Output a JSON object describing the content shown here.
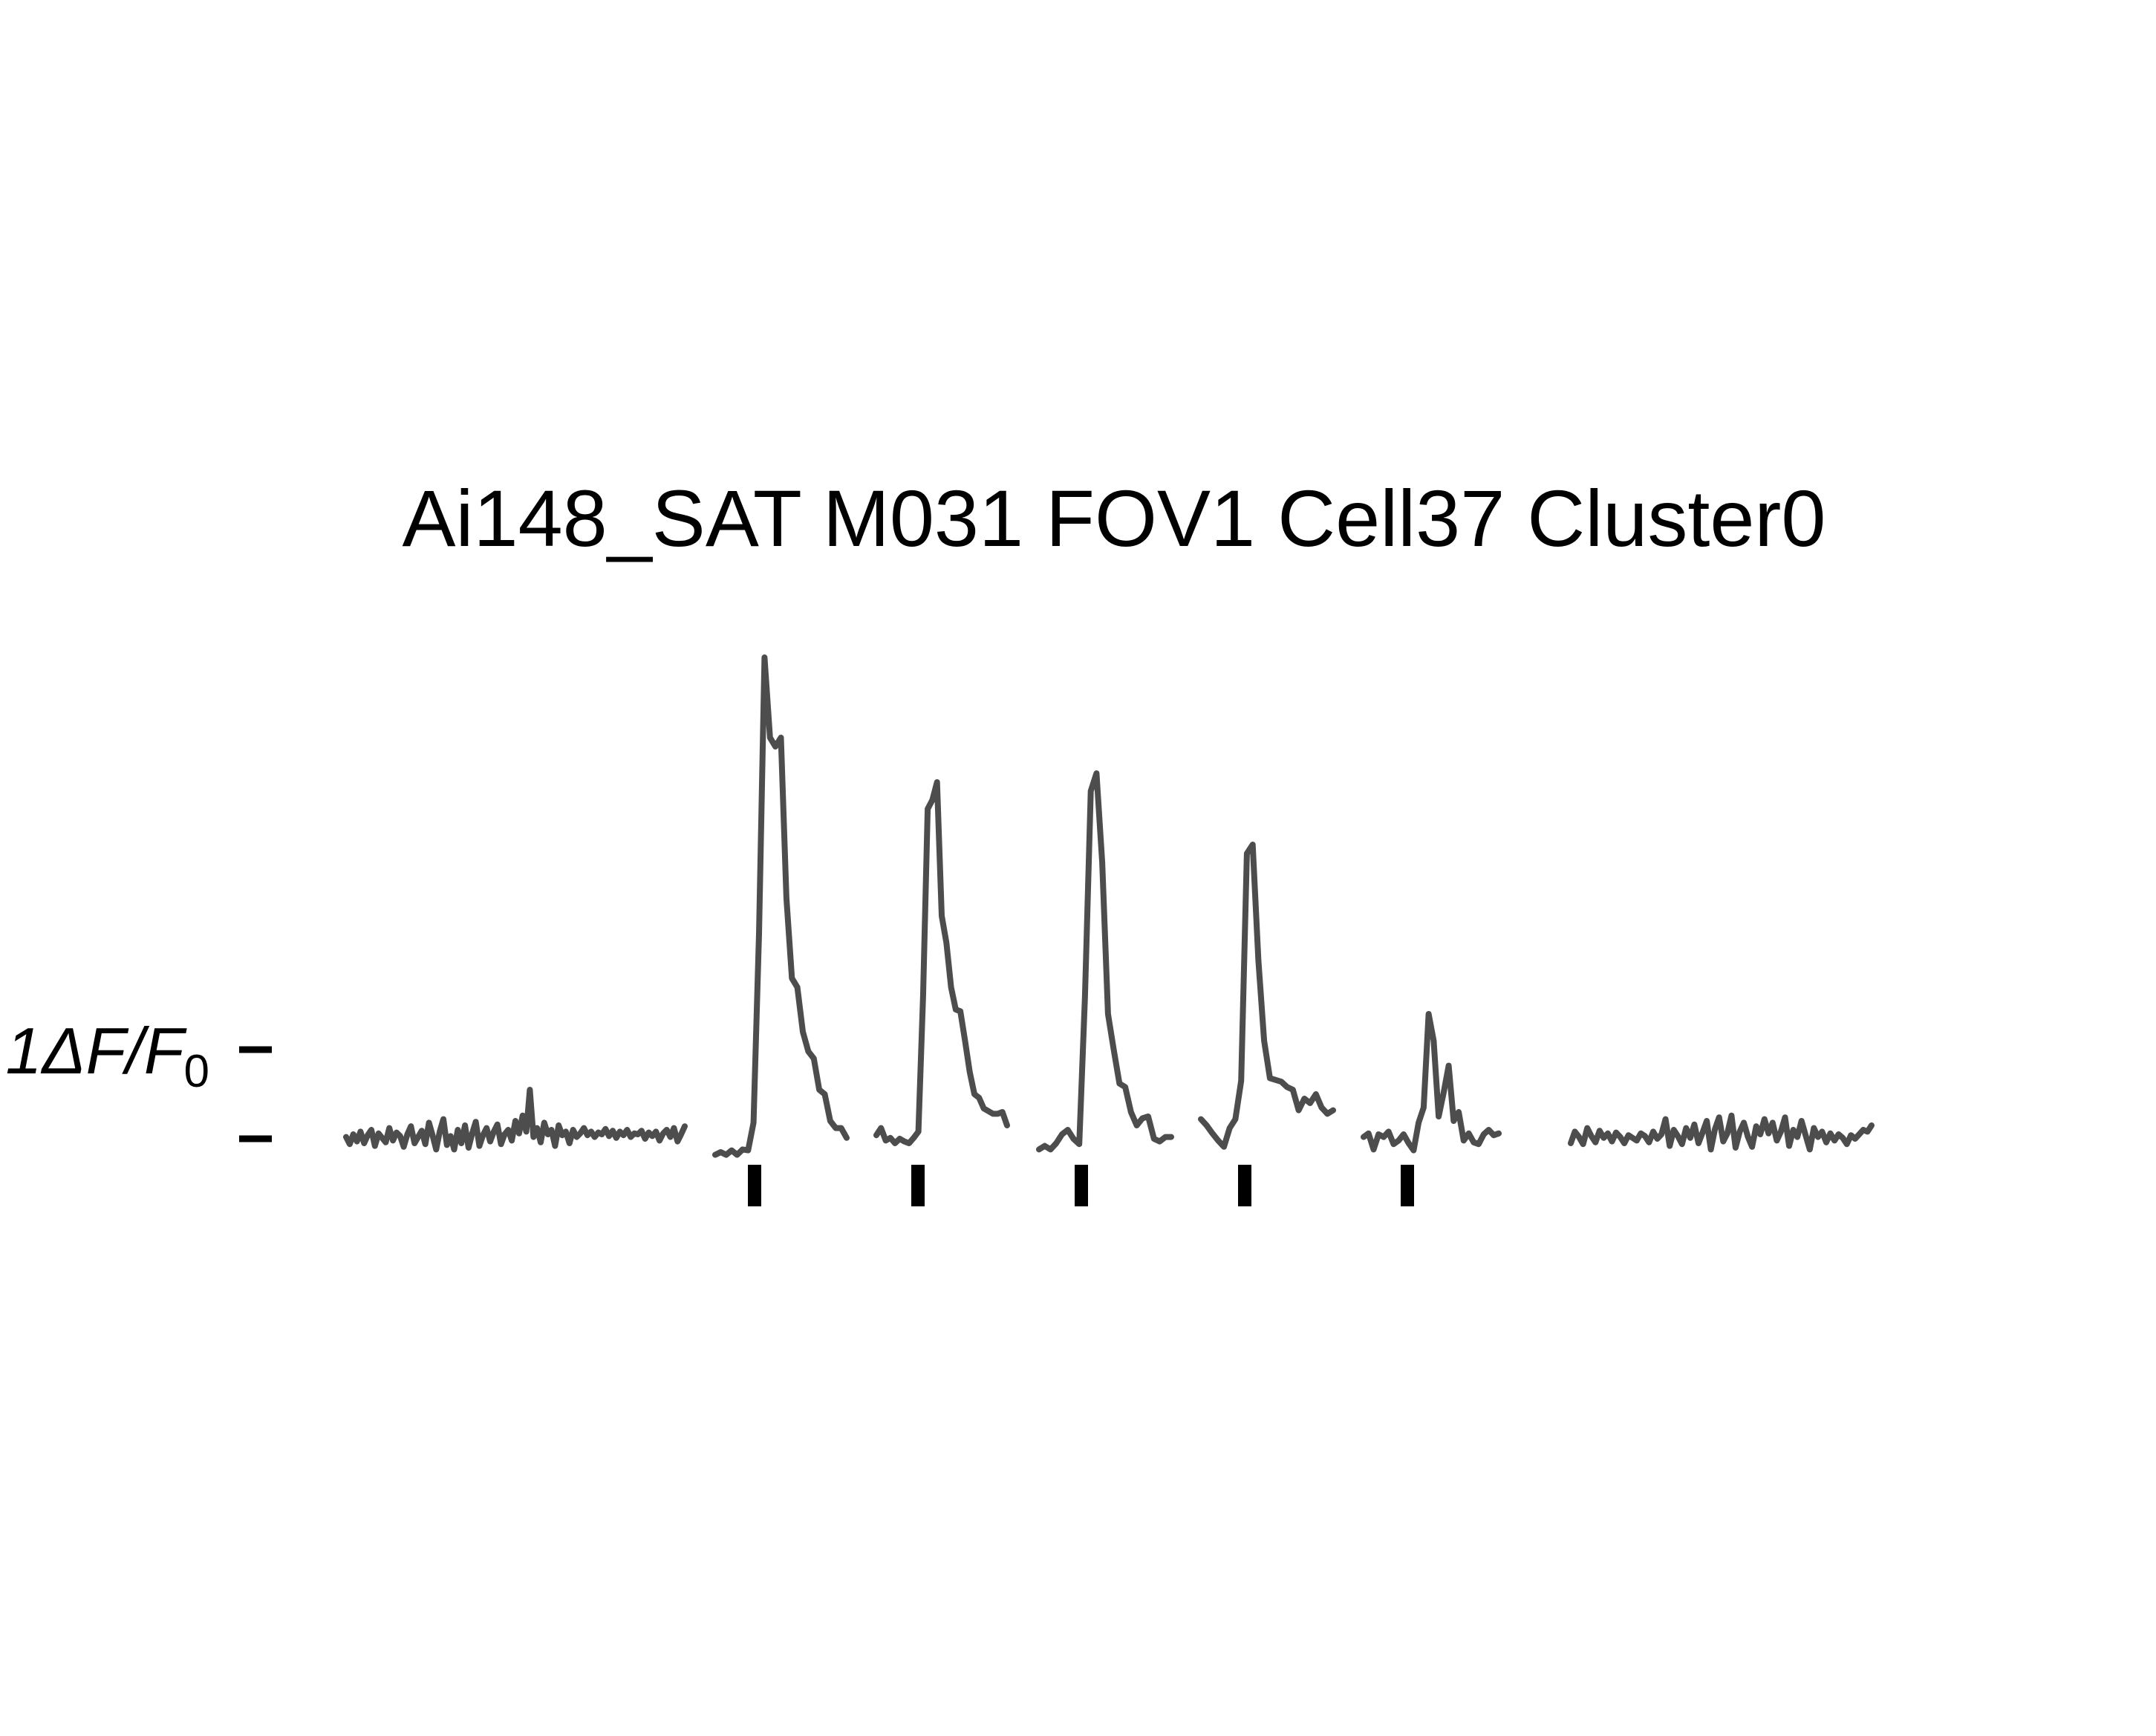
{
  "chart_data": {
    "type": "line",
    "title": "Ai148_SAT M031 FOV1 Cell37 Cluster0",
    "ylabel_prefix": "1",
    "ylabel_delta": "Δ",
    "ylabel_F": "F",
    "ylabel_slash": "/",
    "ylabel_F0": "F",
    "ylabel_F0_sub": "0",
    "scale_bar": {
      "from": 0,
      "to": 1
    },
    "line_color": "#4d4d4d",
    "stim_marker_color": "#000000",
    "segments": [
      {
        "name": "baseline-pre",
        "values": [
          0.02,
          -0.06,
          0.05,
          -0.03,
          0.08,
          -0.05,
          0.04,
          0.1,
          -0.08,
          0.06,
          0.01,
          -0.04,
          0.12,
          -0.02,
          0.07,
          0.03,
          -0.09,
          0.05,
          0.14,
          -0.05,
          0.02,
          0.09,
          -0.06,
          0.18,
          0.04,
          -0.12,
          0.08,
          0.22,
          -0.07,
          0.03,
          -0.12,
          0.1,
          -0.05,
          0.15,
          -0.1,
          0.06,
          0.19,
          -0.08,
          0.04,
          0.12,
          -0.03,
          0.08,
          0.16,
          -0.06,
          0.05,
          0.1,
          -0.02,
          0.2,
          0.06,
          0.26,
          0.08,
          0.55,
          0.02,
          0.12,
          -0.04,
          0.18,
          0.05,
          0.1,
          -0.08,
          0.15,
          0.04,
          0.08,
          -0.05,
          0.1,
          0.02,
          0.06,
          0.12,
          0.04,
          0.08,
          0.02,
          0.07,
          0.05,
          0.11,
          0.03,
          0.09,
          0.01,
          0.08,
          0.04,
          0.1,
          0.02,
          0.06,
          0.05,
          0.09,
          0.0,
          0.07,
          0.03,
          0.08,
          -0.02,
          0.06,
          0.1,
          0.02,
          0.12,
          -0.03,
          0.05,
          0.14
        ]
      },
      {
        "name": "stim-1",
        "values": [
          -0.18,
          -0.15,
          -0.18,
          -0.13,
          -0.18,
          -0.12,
          -0.13,
          0.18,
          2.3,
          5.4,
          4.5,
          4.4,
          4.5,
          2.7,
          1.8,
          1.7,
          1.2,
          0.98,
          0.9,
          0.55,
          0.5,
          0.2,
          0.12,
          0.12,
          0.01
        ]
      },
      {
        "name": "stim-2",
        "values": [
          0.04,
          0.12,
          -0.02,
          0.01,
          -0.05,
          0.0,
          -0.03,
          -0.05,
          0.01,
          0.08,
          1.6,
          3.7,
          3.8,
          4.0,
          2.5,
          2.2,
          1.7,
          1.45,
          1.43,
          1.1,
          0.75,
          0.5,
          0.46,
          0.34,
          0.31,
          0.28,
          0.28,
          0.3,
          0.15
        ]
      },
      {
        "name": "stim-3",
        "values": [
          -0.12,
          -0.08,
          -0.12,
          -0.05,
          0.05,
          0.1,
          0.0,
          -0.06,
          1.6,
          3.9,
          4.1,
          3.1,
          1.4,
          1.0,
          0.62,
          0.58,
          0.3,
          0.15,
          0.23,
          0.25,
          0.0,
          -0.03,
          0.02,
          0.02
        ]
      },
      {
        "name": "stim-4",
        "values": [
          0.22,
          0.15,
          0.06,
          -0.02,
          -0.09,
          0.12,
          0.22,
          0.65,
          3.2,
          3.3,
          2.0,
          1.1,
          0.68,
          0.66,
          0.64,
          0.58,
          0.55,
          0.32,
          0.45,
          0.4,
          0.5,
          0.35,
          0.28,
          0.32
        ]
      },
      {
        "name": "stim-5",
        "values": [
          0.02,
          0.06,
          -0.12,
          0.05,
          0.02,
          0.08,
          -0.06,
          -0.02,
          0.05,
          -0.05,
          -0.13,
          0.18,
          0.35,
          1.4,
          1.1,
          0.25,
          0.52,
          0.82,
          0.2,
          0.3,
          -0.02,
          0.06,
          -0.04,
          -0.06,
          0.05,
          0.1,
          0.04,
          0.06
        ]
      },
      {
        "name": "baseline-post",
        "values": [
          -0.05,
          0.08,
          0.02,
          -0.06,
          0.12,
          0.03,
          -0.04,
          0.09,
          0.01,
          0.06,
          -0.03,
          0.07,
          0.02,
          -0.05,
          0.04,
          0.01,
          -0.02,
          0.06,
          0.03,
          -0.04,
          0.08,
          0.0,
          0.05,
          0.22,
          -0.08,
          0.1,
          0.03,
          -0.06,
          0.12,
          0.01,
          0.16,
          -0.05,
          0.07,
          0.2,
          -0.12,
          0.11,
          0.24,
          -0.03,
          0.06,
          0.26,
          -0.1,
          0.08,
          0.18,
          0.02,
          -0.09,
          0.14,
          0.05,
          0.22,
          0.06,
          0.18,
          -0.02,
          0.08,
          0.24,
          -0.08,
          0.1,
          0.02,
          0.2,
          0.04,
          -0.12,
          0.12,
          0.02,
          0.08,
          -0.04,
          0.06,
          -0.02,
          0.05,
          0.01,
          -0.06,
          0.04,
          0.0,
          0.05,
          0.1,
          0.08,
          0.15
        ]
      }
    ],
    "stim_markers": 5
  }
}
